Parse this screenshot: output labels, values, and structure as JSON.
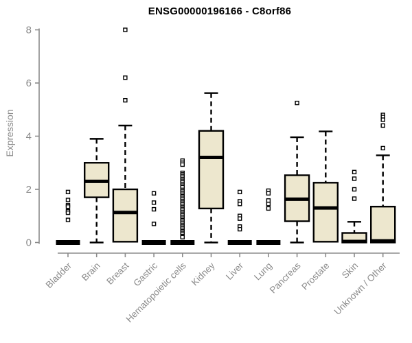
{
  "chart_data": {
    "type": "boxplot",
    "title": "ENSG00000196166 - C8orf86",
    "ylabel": "Expression",
    "xlabel": "",
    "ylim": [
      0,
      8
    ],
    "yticks": [
      0,
      2,
      4,
      6,
      8
    ],
    "grid": false,
    "legend": "none",
    "categories": [
      "Bladder",
      "Brain",
      "Breast",
      "Gastric",
      "Hematopoietic cells",
      "Kidney",
      "Liver",
      "Lung",
      "Pancreas",
      "Prostate",
      "Skin",
      "Unknown / Other"
    ],
    "series": [
      {
        "name": "Bladder",
        "whisker_low": 0,
        "q1": 0,
        "median": 0,
        "q3": 0,
        "whisker_high": 0,
        "outliers": [
          1.9,
          1.6,
          1.4,
          1.35,
          1.18,
          1.12,
          0.85
        ]
      },
      {
        "name": "Brain",
        "whisker_low": 0,
        "q1": 1.7,
        "median": 2.3,
        "q3": 3.0,
        "whisker_high": 3.9,
        "outliers": []
      },
      {
        "name": "Breast",
        "whisker_low": 0.03,
        "q1": 0.03,
        "median": 1.13,
        "q3": 2.0,
        "whisker_high": 4.4,
        "outliers": [
          8.0,
          6.2,
          5.35
        ]
      },
      {
        "name": "Gastric",
        "whisker_low": 0,
        "q1": 0,
        "median": 0,
        "q3": 0,
        "whisker_high": 0,
        "outliers": [
          1.85,
          1.5,
          1.25,
          0.7
        ]
      },
      {
        "name": "Hematopoietic cells",
        "whisker_low": 0,
        "q1": 0,
        "median": 0,
        "q3": 0,
        "whisker_high": 0,
        "outliers": [
          3.08,
          3.0,
          2.93,
          2.62,
          2.56,
          2.5,
          2.44,
          2.38,
          2.32,
          2.26,
          2.2,
          2.14,
          2.08,
          1.98,
          1.92,
          1.86,
          1.8,
          1.74,
          1.68,
          1.62,
          1.56,
          1.5,
          1.44,
          1.38,
          1.32,
          1.26,
          1.2,
          1.14,
          1.08,
          1.02,
          0.96,
          0.9,
          0.84,
          0.78,
          0.72,
          0.66,
          0.6,
          0.54,
          0.48,
          0.42,
          0.36,
          0.3,
          0.24,
          0.2
        ]
      },
      {
        "name": "Kidney",
        "whisker_low": 0,
        "q1": 1.28,
        "median": 3.2,
        "q3": 4.2,
        "whisker_high": 5.62,
        "outliers": []
      },
      {
        "name": "Liver",
        "whisker_low": 0,
        "q1": 0,
        "median": 0,
        "q3": 0,
        "whisker_high": 0,
        "outliers": [
          1.9,
          1.55,
          1.45,
          1.0,
          0.9,
          0.6,
          0.5
        ]
      },
      {
        "name": "Lung",
        "whisker_low": 0,
        "q1": 0,
        "median": 0,
        "q3": 0,
        "whisker_high": 0,
        "outliers": [
          1.95,
          1.85,
          1.58,
          1.45,
          1.28
        ]
      },
      {
        "name": "Pancreas",
        "whisker_low": 0,
        "q1": 0.8,
        "median": 1.63,
        "q3": 2.53,
        "whisker_high": 3.96,
        "outliers": [
          5.25
        ]
      },
      {
        "name": "Prostate",
        "whisker_low": 0.03,
        "q1": 0.03,
        "median": 1.3,
        "q3": 2.25,
        "whisker_high": 4.18,
        "outliers": []
      },
      {
        "name": "Skin",
        "whisker_low": 0,
        "q1": 0,
        "median": 0.04,
        "q3": 0.36,
        "whisker_high": 0.78,
        "outliers": [
          2.65,
          2.4,
          2.0,
          1.65
        ]
      },
      {
        "name": "Unknown / Other",
        "whisker_low": 0,
        "q1": 0,
        "median": 0.06,
        "q3": 1.35,
        "whisker_high": 3.28,
        "outliers": [
          4.8,
          4.72,
          4.62,
          4.4,
          3.55
        ]
      }
    ],
    "colors": {
      "box_fill": "#EDE7CE",
      "box_stroke": "#000000",
      "median": "#000000",
      "outlier_fill": "#FFFFFF",
      "axis": "#8B8B8B",
      "tick_label": "#8B8B8B",
      "title": "#000000",
      "background": "#FFFFFF"
    }
  }
}
